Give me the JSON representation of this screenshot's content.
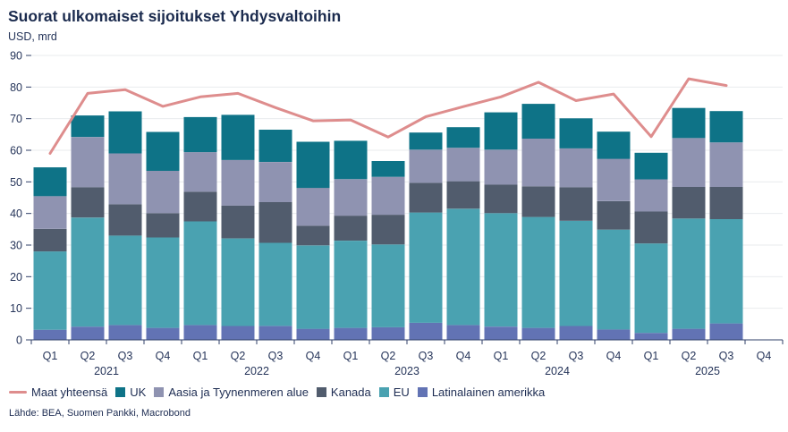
{
  "header": {
    "title": "Suorat ulkomaiset sijoitukset Yhdysvaltoihin",
    "subtitle": "USD, mrd"
  },
  "footer": {
    "source": "Lähde: BEA, Suomen Pankki, Macrobond"
  },
  "colors": {
    "text": "#1d2c52",
    "grid": "#eaebee",
    "axis": "#32416a",
    "line": "#de8d8d",
    "uk": "#0e7387",
    "asia": "#8f93b1",
    "canada": "#515c6d",
    "eu": "#4aa2b1",
    "latam": "#6273b4"
  },
  "chart_data": {
    "type": "bar",
    "subtype": "stacked-bar-with-line",
    "title": "Suorat ulkomaiset sijoitukset Yhdysvaltoihin",
    "ylabel": "USD, mrd",
    "ylim": [
      0,
      90
    ],
    "ytick_step": 10,
    "grid": true,
    "legend_position": "bottom",
    "quarter_labels": [
      "Q1",
      "Q2",
      "Q3",
      "Q4",
      "Q1",
      "Q2",
      "Q3",
      "Q4",
      "Q1",
      "Q2",
      "Q3",
      "Q4",
      "Q1",
      "Q2",
      "Q3",
      "Q4",
      "Q1",
      "Q2",
      "Q3",
      "Q4"
    ],
    "year_labels": [
      "2021",
      "2022",
      "2023",
      "2024",
      "2025"
    ],
    "categories": [
      "2021 Q1",
      "2021 Q2",
      "2021 Q3",
      "2021 Q4",
      "2022 Q1",
      "2022 Q2",
      "2022 Q3",
      "2022 Q4",
      "2023 Q1",
      "2023 Q2",
      "2023 Q3",
      "2023 Q4",
      "2024 Q1",
      "2024 Q2",
      "2024 Q3",
      "2024 Q4",
      "2025 Q1",
      "2025 Q2",
      "2025 Q3"
    ],
    "series": [
      {
        "name": "Latinalainen amerikka",
        "color": "#6273b4",
        "values": [
          3.2,
          4.2,
          4.7,
          3.8,
          4.7,
          4.4,
          4.4,
          3.5,
          3.8,
          4.0,
          5.4,
          4.7,
          4.2,
          3.8,
          4.4,
          3.3,
          2.2,
          3.5,
          5.2
        ]
      },
      {
        "name": "EU",
        "color": "#4aa2b1",
        "values": [
          24.8,
          34.5,
          28.3,
          28.6,
          32.8,
          27.7,
          26.3,
          26.4,
          27.6,
          26.2,
          34.9,
          36.8,
          35.9,
          35.1,
          33.3,
          31.6,
          28.3,
          34.9,
          33.0
        ]
      },
      {
        "name": "Kanada",
        "color": "#515c6d",
        "values": [
          7.1,
          9.6,
          9.9,
          7.7,
          9.4,
          10.4,
          12.9,
          6.2,
          7.9,
          9.4,
          9.4,
          8.7,
          9.0,
          9.7,
          10.6,
          9.0,
          10.1,
          10.0,
          10.2
        ]
      },
      {
        "name": "Aasia ja Tyynenmeren alue",
        "color": "#8f93b1",
        "values": [
          10.4,
          15.9,
          16.1,
          13.4,
          12.5,
          14.4,
          12.7,
          12.0,
          11.6,
          12.0,
          10.5,
          10.6,
          11.1,
          15.1,
          12.3,
          13.4,
          10.2,
          15.5,
          14.1
        ]
      },
      {
        "name": "UK",
        "color": "#0e7387",
        "values": [
          9.1,
          6.8,
          13.3,
          12.3,
          11.1,
          14.3,
          10.2,
          14.6,
          12.1,
          5.0,
          5.4,
          6.5,
          11.8,
          11.0,
          9.5,
          8.6,
          8.4,
          9.5,
          9.9
        ]
      }
    ],
    "bar_totals": [
      54.6,
      71.0,
      72.3,
      65.8,
      70.5,
      71.2,
      66.5,
      62.7,
      63.0,
      56.6,
      65.6,
      67.3,
      72.0,
      74.7,
      70.1,
      65.9,
      59.2,
      73.4,
      72.4
    ],
    "line_series": {
      "name": "Maat yhteensä",
      "color": "#de8d8d",
      "values": [
        59.0,
        78.0,
        79.2,
        73.9,
        76.9,
        78.0,
        73.5,
        69.3,
        69.6,
        64.2,
        70.6,
        73.8,
        76.9,
        81.5,
        75.7,
        77.8,
        64.3,
        82.6,
        80.5
      ]
    }
  },
  "legend": {
    "items": [
      {
        "label": "Maat yhteensä",
        "marker": "line",
        "color": "#de8d8d"
      },
      {
        "label": "UK",
        "marker": "square",
        "color": "#0e7387"
      },
      {
        "label": "Aasia ja Tyynenmeren alue",
        "marker": "square",
        "color": "#8f93b1"
      },
      {
        "label": "Kanada",
        "marker": "square",
        "color": "#515c6d"
      },
      {
        "label": "EU",
        "marker": "square",
        "color": "#4aa2b1"
      },
      {
        "label": "Latinalainen amerikka",
        "marker": "square",
        "color": "#6273b4"
      }
    ]
  }
}
